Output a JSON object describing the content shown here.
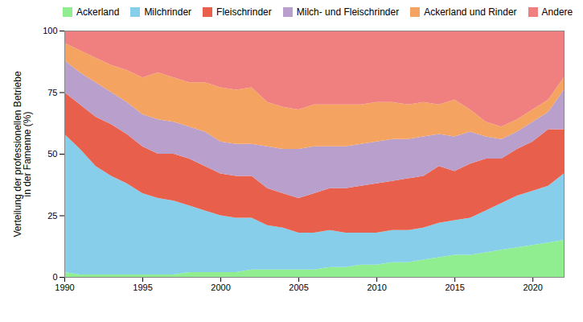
{
  "chart_data": {
    "type": "area",
    "stacked": true,
    "ylabel": "Verteilung der professionellen Betriebe\nin der Famenne (%)",
    "x": [
      1990,
      1991,
      1992,
      1993,
      1994,
      1995,
      1996,
      1997,
      1998,
      1999,
      2000,
      2001,
      2002,
      2003,
      2004,
      2005,
      2006,
      2007,
      2008,
      2009,
      2010,
      2011,
      2012,
      2013,
      2014,
      2015,
      2016,
      2017,
      2018,
      2019,
      2020,
      2021,
      2022
    ],
    "series": [
      {
        "name": "Ackerland",
        "color": "#90ee90",
        "values": [
          2,
          1,
          1,
          1,
          1,
          1,
          1,
          1,
          2,
          2,
          2,
          2,
          3,
          3,
          3,
          3,
          3,
          4,
          4,
          5,
          5,
          6,
          6,
          7,
          8,
          9,
          9,
          10,
          11,
          12,
          13,
          14,
          15
        ]
      },
      {
        "name": "Milchrinder",
        "color": "#87ceeb",
        "values": [
          56,
          51,
          44,
          40,
          37,
          33,
          31,
          30,
          27,
          25,
          23,
          22,
          21,
          18,
          17,
          15,
          15,
          15,
          14,
          13,
          13,
          13,
          13,
          13,
          14,
          14,
          15,
          17,
          19,
          21,
          22,
          23,
          27
        ]
      },
      {
        "name": "Fleischrinder",
        "color": "#e8604c",
        "values": [
          17,
          18,
          20,
          21,
          20,
          19,
          18,
          19,
          19,
          18,
          17,
          17,
          17,
          15,
          14,
          14,
          16,
          17,
          18,
          19,
          20,
          20,
          21,
          21,
          23,
          20,
          22,
          21,
          18,
          19,
          20,
          23,
          18
        ]
      },
      {
        "name": "Milch- und Fleischrinder",
        "color": "#b89fcc",
        "values": [
          13,
          13,
          14,
          13,
          13,
          13,
          14,
          13,
          13,
          14,
          13,
          13,
          13,
          17,
          18,
          20,
          19,
          17,
          17,
          17,
          17,
          17,
          16,
          16,
          13,
          14,
          13,
          9,
          8,
          7,
          8,
          7,
          16
        ]
      },
      {
        "name": "Ackerland und Rinder",
        "color": "#f4a460",
        "values": [
          7,
          9,
          10,
          11,
          13,
          15,
          19,
          18,
          18,
          20,
          22,
          22,
          23,
          18,
          17,
          16,
          17,
          17,
          17,
          16,
          16,
          15,
          14,
          14,
          12,
          15,
          9,
          6,
          5,
          5,
          5,
          5,
          5
        ]
      },
      {
        "name": "Andere",
        "color": "#f08080",
        "values": [
          5,
          8,
          11,
          14,
          16,
          19,
          17,
          19,
          21,
          21,
          23,
          24,
          23,
          29,
          31,
          32,
          30,
          30,
          30,
          30,
          29,
          29,
          30,
          29,
          30,
          28,
          32,
          37,
          39,
          36,
          32,
          28,
          19
        ]
      }
    ],
    "xlim": [
      1990,
      2022
    ],
    "ylim": [
      0,
      100
    ],
    "xticks": [
      1990,
      1995,
      2000,
      2005,
      2010,
      2015,
      2020
    ],
    "yticks": [
      0,
      25,
      50,
      75,
      100
    ],
    "grid": true,
    "legend": "top"
  }
}
